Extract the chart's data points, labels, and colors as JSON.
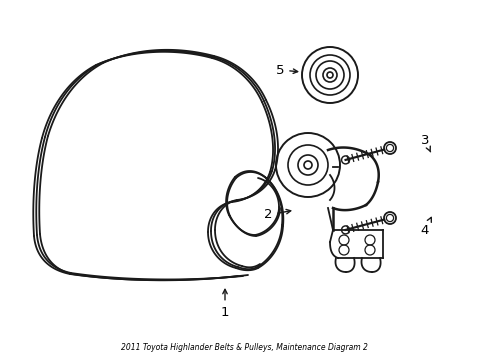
{
  "title": "2011 Toyota Highlander Belts & Pulleys, Maintenance Diagram 2",
  "background_color": "#ffffff",
  "line_color": "#1a1a1a",
  "label_color": "#000000",
  "figsize": [
    4.89,
    3.6
  ],
  "dpi": 100
}
